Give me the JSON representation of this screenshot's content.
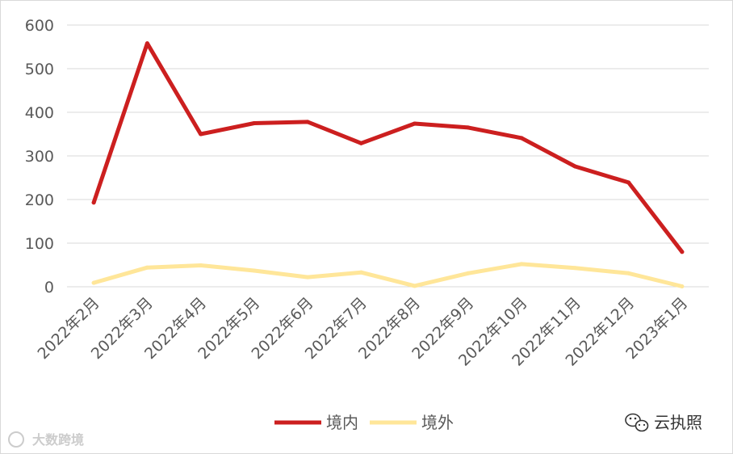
{
  "chart_data": {
    "type": "line",
    "categories": [
      "2022年2月",
      "2022年3月",
      "2022年4月",
      "2022年5月",
      "2022年6月",
      "2022年7月",
      "2022年8月",
      "2022年9月",
      "2022年10月",
      "2022年11月",
      "2022年12月",
      "2023年1月"
    ],
    "series": [
      {
        "name": "境内",
        "values": [
          193,
          558,
          350,
          375,
          378,
          329,
          374,
          365,
          341,
          276,
          239,
          80
        ],
        "color": "#cc1f1f"
      },
      {
        "name": "境外",
        "values": [
          9,
          44,
          49,
          37,
          22,
          33,
          2,
          31,
          52,
          43,
          31,
          1
        ],
        "color": "#ffe699"
      }
    ],
    "yticks": [
      0,
      100,
      200,
      300,
      400,
      500,
      600
    ],
    "ylim": [
      0,
      600
    ],
    "grid": true,
    "legend_position": "bottom-center"
  },
  "watermark": {
    "right_text": "云执照",
    "left_text": "大数跨境",
    "icon": "wechat-icon"
  }
}
